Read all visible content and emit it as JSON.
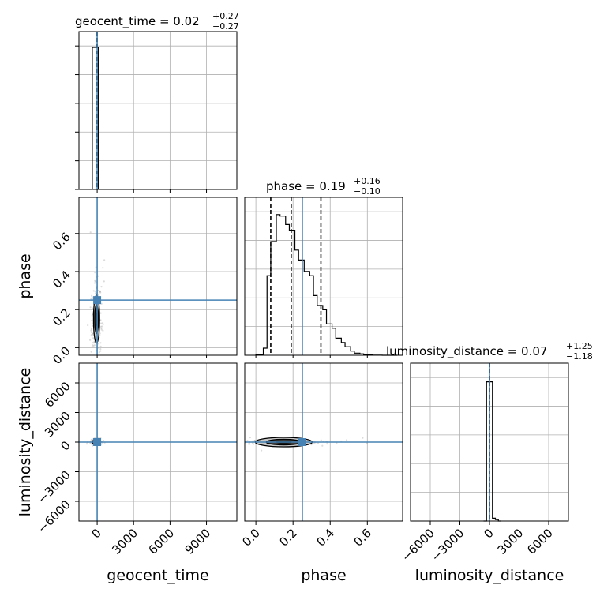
{
  "chart_data": {
    "type": "corner",
    "parameters": [
      "geocent_time",
      "phase",
      "luminosity_distance"
    ],
    "truths": {
      "geocent_time": 0,
      "phase": 0.25,
      "luminosity_distance": 0
    },
    "truth_color": "#4682b4",
    "grid": true,
    "titles": [
      {
        "param": "geocent_time",
        "prefix": "geocent_time = ",
        "median": "0.02",
        "plus": "+0.27",
        "minus": "−0.27"
      },
      {
        "param": "phase",
        "prefix": "phase = ",
        "median": "0.19",
        "plus": "+0.16",
        "minus": "−0.10"
      },
      {
        "param": "luminosity_distance",
        "prefix": "luminosity_distance = ",
        "median": "0.07",
        "plus": "+1.25",
        "minus": "−1.18"
      }
    ],
    "axes": {
      "geocent_time": {
        "range": [
          -1500,
          11500
        ],
        "ticks": [
          0,
          3000,
          6000,
          9000
        ],
        "tick_labels": [
          "0",
          "3000",
          "6000",
          "9000"
        ],
        "xlabel": "geocent_time"
      },
      "phase": {
        "range": [
          -0.06,
          0.79
        ],
        "ticks": [
          0.0,
          0.2,
          0.4,
          0.6
        ],
        "tick_labels": [
          "0.0",
          "0.2",
          "0.4",
          "0.6"
        ],
        "xlabel": "phase",
        "ylabel": "phase",
        "y_range": [
          -0.04,
          0.79
        ],
        "y_ticks": [
          0.0,
          0.2,
          0.4,
          0.6
        ],
        "y_tick_labels": [
          "0.0",
          "0.2",
          "0.4",
          "0.6"
        ]
      },
      "luminosity_distance": {
        "range": [
          -8000,
          8000
        ],
        "ticks": [
          -6000,
          -3000,
          0,
          3000,
          6000
        ],
        "tick_labels": [
          "−6000",
          "−3000",
          "0",
          "3000",
          "6000"
        ],
        "xlabel": "luminosity_distance",
        "ylabel": "luminosity_distance",
        "y_range": [
          -8000,
          8000
        ],
        "y_ticks": [
          -6000,
          -3000,
          0,
          3000,
          6000
        ],
        "y_tick_labels": [
          "−6000",
          "−3000",
          "0",
          "3000",
          "6000"
        ]
      }
    },
    "diag_hist": {
      "geocent_time": {
        "edges": [
          -400,
          100
        ],
        "counts": [
          1.0
        ],
        "ymax": 1.0,
        "quantiles": [
          -0.25,
          0.02,
          0.29
        ]
      },
      "phase": {
        "edges": [
          0.0,
          0.04,
          0.06,
          0.08,
          0.11,
          0.13,
          0.16,
          0.18,
          0.21,
          0.23,
          0.26,
          0.29,
          0.31,
          0.33,
          0.36,
          0.38,
          0.41,
          0.43,
          0.46,
          0.48,
          0.51,
          0.53,
          0.56,
          0.58,
          0.61,
          0.63,
          0.66,
          0.68,
          0.71,
          0.73,
          0.76
        ],
        "counts": [
          0.005,
          0.05,
          0.56,
          0.8,
          0.99,
          0.98,
          0.92,
          0.88,
          0.74,
          0.67,
          0.59,
          0.56,
          0.42,
          0.35,
          0.32,
          0.22,
          0.19,
          0.12,
          0.09,
          0.06,
          0.03,
          0.015,
          0.01,
          0.005,
          0.002,
          0.001,
          0.001,
          0.0,
          0.0,
          0.0
        ],
        "ymax": 1.0,
        "quantiles": [
          0.08,
          0.19,
          0.35
        ]
      },
      "luminosity_distance": {
        "edges": [
          -600,
          -300,
          0,
          300,
          600,
          900,
          1200
        ],
        "counts": [
          0.0,
          0.98,
          0.98,
          0.02,
          0.01,
          0.0
        ],
        "ymax": 1.0,
        "quantiles": [
          -1.11,
          0.07,
          1.32
        ]
      }
    },
    "pairs": {
      "phase_vs_geocent_time": {
        "center": [
          -50,
          0.15
        ],
        "sigma": [
          140,
          0.07
        ]
      },
      "luminosity_distance_vs_geocent_time": {
        "center": [
          -50,
          0
        ],
        "sigma": [
          120,
          60
        ]
      },
      "luminosity_distance_vs_phase": {
        "center": [
          0.15,
          0
        ],
        "sigma": [
          0.07,
          70
        ]
      }
    }
  }
}
